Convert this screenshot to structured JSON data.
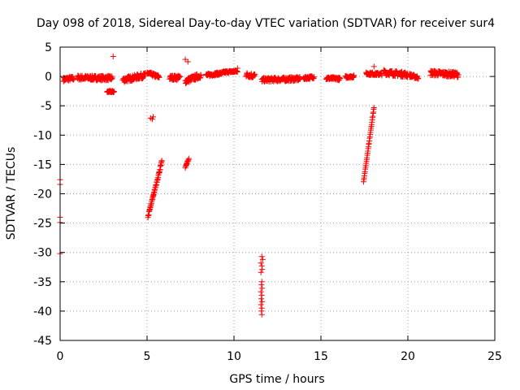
{
  "chart_data": {
    "type": "scatter",
    "title": "Day 098 of 2018, Sidereal Day-to-day VTEC variation (SDTVAR) for receiver sur4",
    "xlabel": "GPS time / hours",
    "ylabel": "SDTVAR / TECUs",
    "xlim": [
      0,
      25
    ],
    "ylim": [
      -45,
      5
    ],
    "xticks": [
      0,
      5,
      10,
      15,
      20,
      25
    ],
    "yticks": [
      5,
      0,
      -5,
      -10,
      -15,
      -20,
      -25,
      -30,
      -35,
      -40,
      -45
    ],
    "grid": true,
    "marker": "+",
    "color": "#ff0000",
    "segments": [
      {
        "x": [
          0.2,
          0.8
        ],
        "y": [
          -0.5,
          -0.3
        ],
        "spread": 0.7
      },
      {
        "x": [
          1.0,
          3.0
        ],
        "y": [
          -0.2,
          -0.3
        ],
        "spread": 0.8
      },
      {
        "x": [
          2.7,
          3.1
        ],
        "y": [
          -2.6,
          -2.6
        ],
        "spread": 0.3
      },
      {
        "x": [
          3.6,
          4.9
        ],
        "y": [
          -0.6,
          0.2
        ],
        "spread": 0.9
      },
      {
        "x": [
          5.0,
          5.7
        ],
        "y": [
          0.6,
          -0.1
        ],
        "spread": 0.6
      },
      {
        "x": [
          6.3,
          6.9
        ],
        "y": [
          -0.2,
          -0.2
        ],
        "spread": 0.8
      },
      {
        "x": [
          7.2,
          8.1
        ],
        "y": [
          -0.8,
          0.2
        ],
        "spread": 0.9
      },
      {
        "x": [
          8.4,
          9.4
        ],
        "y": [
          0.2,
          0.6
        ],
        "spread": 0.5
      },
      {
        "x": [
          9.4,
          10.2
        ],
        "y": [
          0.7,
          0.9
        ],
        "spread": 0.4
      },
      {
        "x": [
          10.7,
          11.2
        ],
        "y": [
          0.3,
          0.1
        ],
        "spread": 0.8
      },
      {
        "x": [
          11.6,
          13.8
        ],
        "y": [
          -0.6,
          -0.4
        ],
        "spread": 0.7
      },
      {
        "x": [
          14.0,
          14.6
        ],
        "y": [
          -0.3,
          -0.1
        ],
        "spread": 0.5
      },
      {
        "x": [
          15.3,
          16.1
        ],
        "y": [
          -0.3,
          -0.4
        ],
        "spread": 0.5
      },
      {
        "x": [
          16.4,
          16.9
        ],
        "y": [
          -0.1,
          0.0
        ],
        "spread": 0.4
      },
      {
        "x": [
          17.6,
          18.5
        ],
        "y": [
          0.5,
          0.4
        ],
        "spread": 0.5
      },
      {
        "x": [
          18.6,
          20.0
        ],
        "y": [
          0.7,
          0.3
        ],
        "spread": 0.9
      },
      {
        "x": [
          20.1,
          20.6
        ],
        "y": [
          0.2,
          -0.2
        ],
        "spread": 0.6
      },
      {
        "x": [
          21.3,
          22.9
        ],
        "y": [
          0.6,
          0.3
        ],
        "spread": 0.9
      },
      {
        "x": [
          5.05,
          5.85
        ],
        "y": [
          -24.0,
          -14.5
        ],
        "spread": 0.4
      },
      {
        "x": [
          7.2,
          7.4
        ],
        "y": [
          -15.5,
          -14.0
        ],
        "spread": 0.3
      },
      {
        "x": [
          17.45,
          18.05
        ],
        "y": [
          -18.0,
          -5.3
        ],
        "spread": 0.2
      }
    ],
    "points": [
      [
        0.0,
        -17.6
      ],
      [
        0.0,
        -18.4
      ],
      [
        0.0,
        -24.0
      ],
      [
        0.0,
        -24.9
      ],
      [
        0.0,
        -30.2
      ],
      [
        3.05,
        3.4
      ],
      [
        7.2,
        2.9
      ],
      [
        7.35,
        2.5
      ],
      [
        10.2,
        1.4
      ],
      [
        18.05,
        1.7
      ],
      [
        5.2,
        -7.1
      ],
      [
        5.3,
        -7.3
      ],
      [
        5.35,
        -6.9
      ],
      [
        11.6,
        -30.7
      ],
      [
        11.65,
        -31.2
      ],
      [
        11.55,
        -31.8
      ],
      [
        11.6,
        -32.3
      ],
      [
        11.62,
        -32.9
      ],
      [
        11.55,
        -33.4
      ],
      [
        11.6,
        -35.0
      ],
      [
        11.58,
        -35.5
      ],
      [
        11.62,
        -36.1
      ],
      [
        11.55,
        -36.7
      ],
      [
        11.6,
        -37.3
      ],
      [
        11.57,
        -37.9
      ],
      [
        11.62,
        -38.4
      ],
      [
        11.55,
        -38.9
      ],
      [
        11.6,
        -39.5
      ],
      [
        11.58,
        -40.0
      ],
      [
        11.6,
        -40.6
      ]
    ]
  }
}
